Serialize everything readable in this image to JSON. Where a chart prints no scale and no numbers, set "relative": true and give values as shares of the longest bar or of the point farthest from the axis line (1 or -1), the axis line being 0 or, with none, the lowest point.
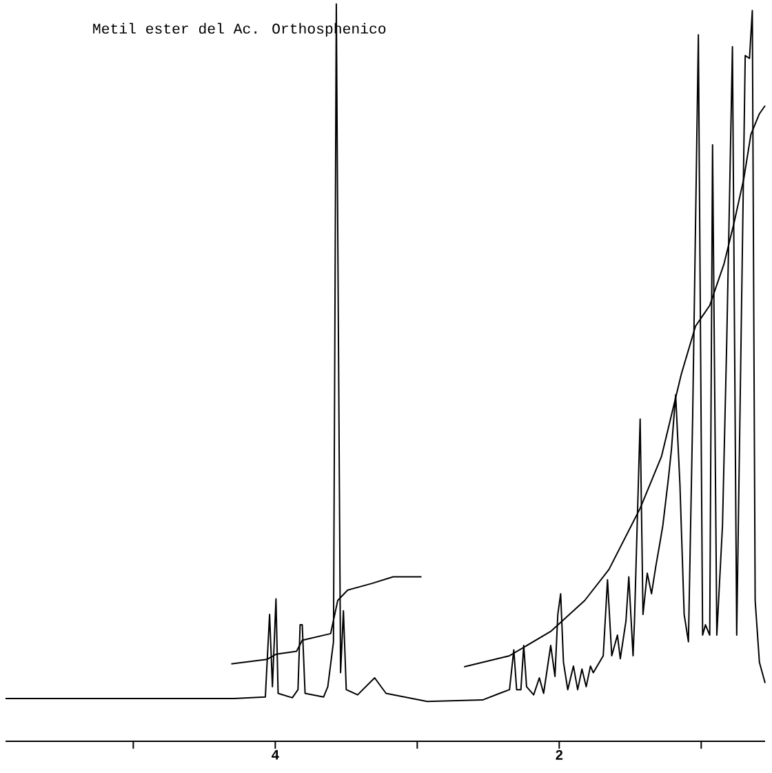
{
  "chart_data": {
    "type": "line",
    "title": "Metil ester del Ac. Orthosphenico",
    "relative": true,
    "xlim": [
      5.9,
      0.55
    ],
    "xticks": [
      {
        "value": 5,
        "label": null
      },
      4,
      {
        "value": 3,
        "label": null
      },
      2,
      {
        "value": 1,
        "label": null
      }
    ],
    "series": [
      {
        "color": "#000000",
        "x": [
          5.9,
          4.29,
          4.07,
          4.04,
          4.02,
          3.995,
          3.98,
          3.88,
          3.84,
          3.825,
          3.81,
          3.79,
          3.66,
          3.63,
          3.59,
          3.57,
          3.54,
          3.52,
          3.5,
          3.42,
          3.3,
          3.22,
          2.93,
          2.54,
          2.42,
          2.35,
          2.32,
          2.3,
          2.27,
          2.25,
          2.23,
          2.18,
          2.14,
          2.11,
          2.06,
          2.03,
          2.01,
          1.99,
          1.97,
          1.94,
          1.9,
          1.87,
          1.84,
          1.81,
          1.78,
          1.76,
          1.69,
          1.66,
          1.63,
          1.59,
          1.57,
          1.53,
          1.51,
          1.48,
          1.47,
          1.43,
          1.41,
          1.38,
          1.35,
          1.32,
          1.29,
          1.27,
          1.23,
          1.21,
          1.18,
          1.15,
          1.12,
          1.09,
          1.06,
          1.02,
          0.99,
          0.97,
          0.94,
          0.92,
          0.89,
          0.85,
          0.82,
          0.78,
          0.75,
          0.72,
          0.69,
          0.66,
          0.64,
          0.62,
          0.59,
          0.55
        ],
        "values": [
          0.058,
          0.058,
          0.06,
          0.172,
          0.074,
          0.193,
          0.065,
          0.059,
          0.07,
          0.158,
          0.158,
          0.065,
          0.06,
          0.074,
          0.135,
          1.0,
          0.093,
          0.177,
          0.07,
          0.063,
          0.086,
          0.065,
          0.054,
          0.056,
          0.065,
          0.07,
          0.124,
          0.07,
          0.07,
          0.13,
          0.074,
          0.063,
          0.086,
          0.065,
          0.13,
          0.088,
          0.172,
          0.2,
          0.107,
          0.07,
          0.102,
          0.07,
          0.098,
          0.074,
          0.102,
          0.093,
          0.116,
          0.219,
          0.116,
          0.144,
          0.112,
          0.163,
          0.223,
          0.116,
          0.163,
          0.437,
          0.172,
          0.228,
          0.2,
          0.237,
          0.27,
          0.293,
          0.358,
          0.395,
          0.47,
          0.349,
          0.172,
          0.135,
          0.442,
          0.958,
          0.144,
          0.158,
          0.144,
          0.809,
          0.144,
          0.293,
          0.544,
          0.942,
          0.144,
          0.535,
          0.93,
          0.926,
          0.991,
          0.191,
          0.107,
          0.079
        ]
      },
      {
        "color": "#000000",
        "x": [
          4.31,
          4.06,
          3.995,
          3.85,
          3.81,
          3.61,
          3.56,
          3.49,
          3.32,
          3.17,
          2.97
        ],
        "values": [
          0.105,
          0.111,
          0.118,
          0.122,
          0.137,
          0.146,
          0.191,
          0.205,
          0.214,
          0.223,
          0.223
        ]
      },
      {
        "color": "#000000",
        "x": [
          2.67,
          2.35,
          2.06,
          1.82,
          1.65,
          1.43,
          1.28,
          1.14,
          1.04,
          0.94,
          0.84,
          0.77,
          0.7,
          0.65,
          0.59,
          0.55
        ],
        "values": [
          0.101,
          0.116,
          0.149,
          0.191,
          0.233,
          0.316,
          0.386,
          0.498,
          0.563,
          0.591,
          0.647,
          0.702,
          0.763,
          0.823,
          0.851,
          0.862
        ]
      }
    ]
  }
}
